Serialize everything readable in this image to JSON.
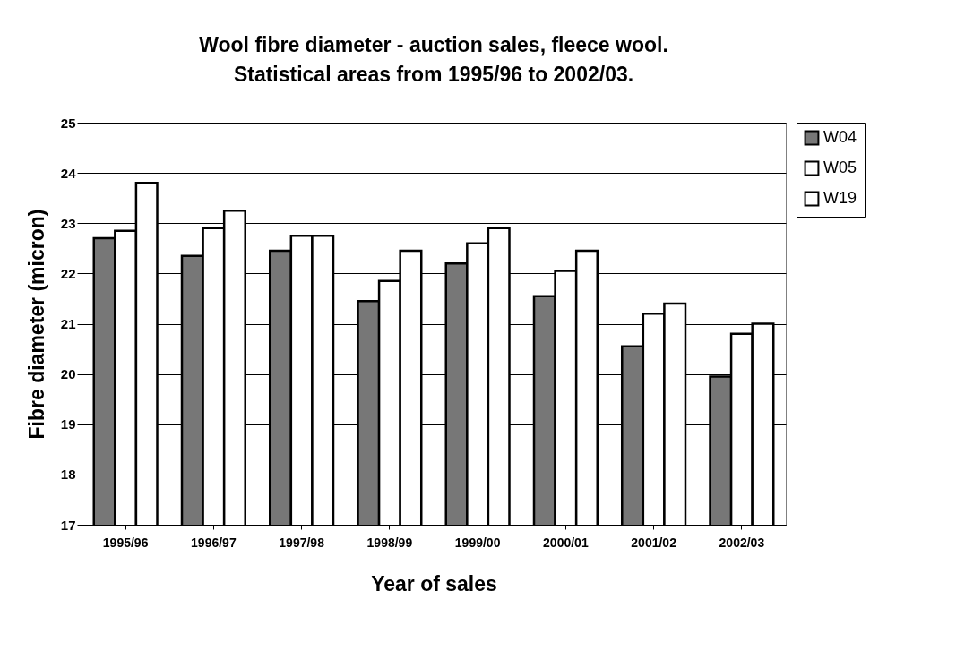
{
  "chart_data": {
    "type": "bar",
    "title": "Wool fibre diameter - auction sales, fleece wool.",
    "subtitle": "Statistical areas from 1995/96 to 2002/03.",
    "xlabel": "Year of sales",
    "ylabel": "Fibre diameter (micron)",
    "categories": [
      "1995/96",
      "1996/97",
      "1997/98",
      "1998/99",
      "1999/00",
      "2000/01",
      "2001/02",
      "2002/03"
    ],
    "series": [
      {
        "name": "W04",
        "color": "#777777",
        "values": [
          22.7,
          22.35,
          22.45,
          21.45,
          22.2,
          21.55,
          20.55,
          19.95
        ]
      },
      {
        "name": "W05",
        "color": "#ffffff",
        "values": [
          22.85,
          22.9,
          22.75,
          21.85,
          22.6,
          22.05,
          21.2,
          20.8
        ]
      },
      {
        "name": "W19",
        "color": "#ffffff",
        "values": [
          23.8,
          23.25,
          22.75,
          22.45,
          22.9,
          22.45,
          21.4,
          21.0
        ]
      }
    ],
    "ylim": [
      17,
      25
    ],
    "yticks": [
      17,
      18,
      19,
      20,
      21,
      22,
      23,
      24,
      25
    ],
    "grid": "y",
    "legend": "right"
  }
}
